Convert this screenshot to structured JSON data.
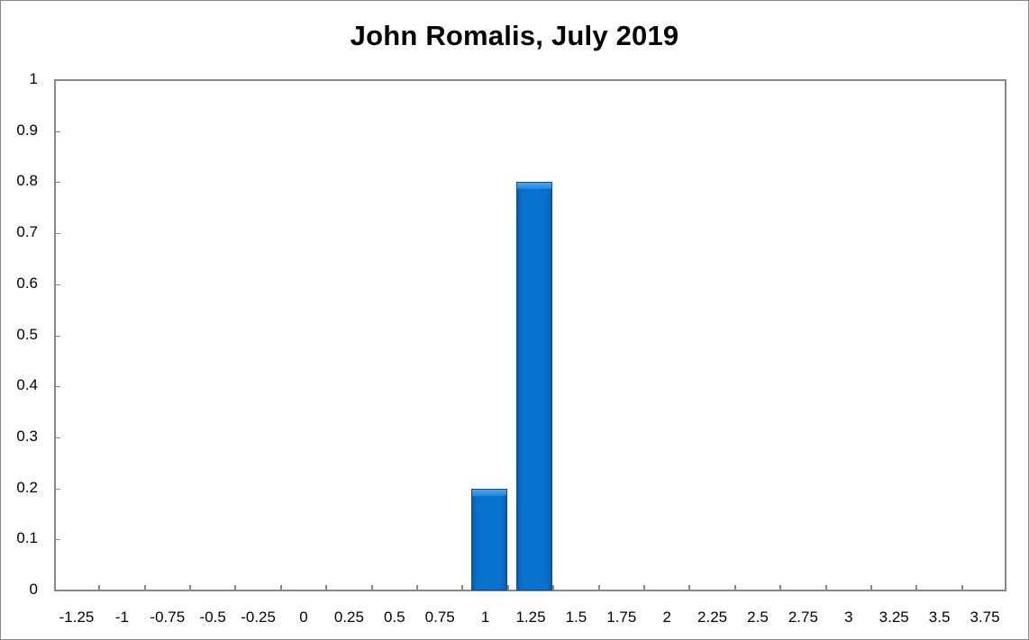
{
  "chart_data": {
    "type": "bar",
    "title": "John Romalis, July 2019",
    "xlabel": "",
    "ylabel": "",
    "categories": [
      "-1.25",
      "-1",
      "-0.75",
      "-0.5",
      "-0.25",
      "0",
      "0.25",
      "0.5",
      "0.75",
      "1",
      "1.25",
      "1.5",
      "1.75",
      "2",
      "2.25",
      "2.5",
      "2.75",
      "3",
      "3.25",
      "3.5",
      "3.75"
    ],
    "values": [
      0,
      0,
      0,
      0,
      0,
      0,
      0,
      0,
      0,
      0.2,
      0.8,
      0,
      0,
      0,
      0,
      0,
      0,
      0,
      0,
      0,
      0
    ],
    "ylim": [
      0,
      1
    ],
    "yticks": [
      "0",
      "0.1",
      "0.2",
      "0.3",
      "0.4",
      "0.5",
      "0.6",
      "0.7",
      "0.8",
      "0.9",
      "1"
    ],
    "grid": false,
    "legend": null,
    "bar_color": "#0874d0"
  }
}
